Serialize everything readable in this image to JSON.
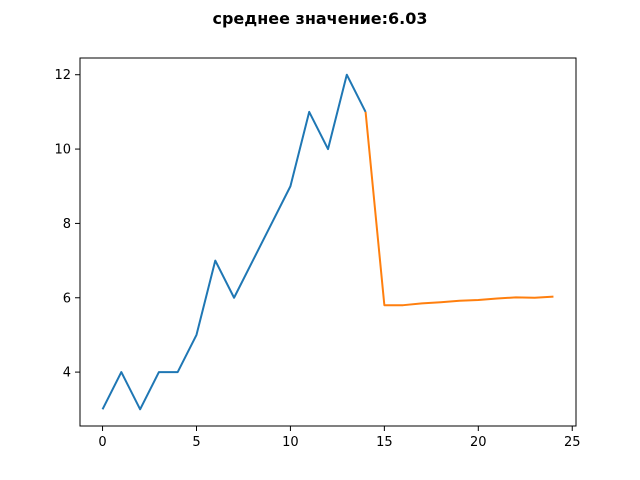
{
  "chart_data": {
    "type": "line",
    "title": "среднее значение:6.03",
    "xlabel": "",
    "ylabel": "",
    "xlim": [
      -1.2,
      25.2
    ],
    "ylim": [
      2.55,
      12.45
    ],
    "x_ticks": [
      0,
      5,
      10,
      15,
      20,
      25
    ],
    "y_ticks": [
      4,
      6,
      8,
      10,
      12
    ],
    "grid": false,
    "legend": "none",
    "series": [
      {
        "color": "#1f77b4",
        "x": [
          0,
          1,
          2,
          3,
          4,
          5,
          6,
          7,
          8,
          9,
          10,
          11,
          12,
          13,
          14
        ],
        "y": [
          3,
          4,
          3,
          4,
          4,
          5,
          7,
          6,
          7,
          8,
          9,
          11,
          10,
          12,
          11
        ]
      },
      {
        "color": "#ff7f0e",
        "x": [
          14,
          15,
          16,
          17,
          18,
          19,
          20,
          21,
          22,
          23,
          24
        ],
        "y": [
          11,
          5.8,
          5.8,
          5.85,
          5.88,
          5.92,
          5.94,
          5.98,
          6.01,
          6.0,
          6.03
        ]
      }
    ]
  }
}
